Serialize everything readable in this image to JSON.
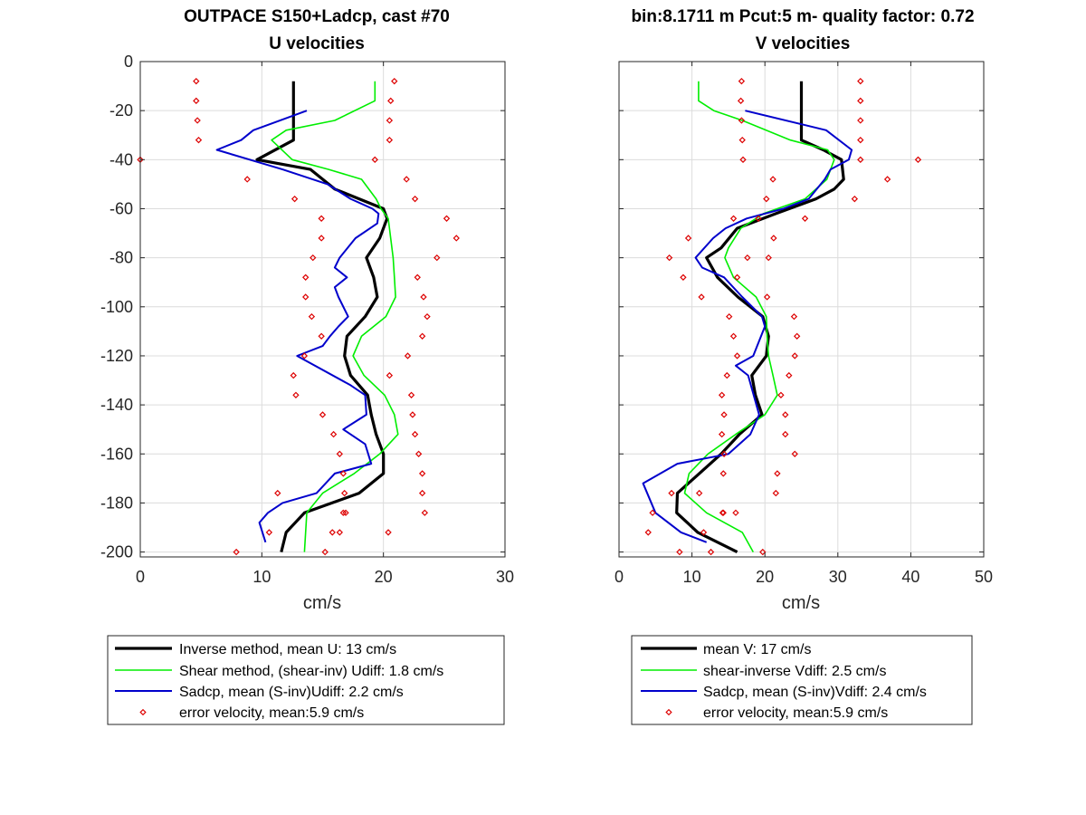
{
  "chart_data": [
    {
      "type": "line",
      "title": [
        "OUTPACE S150+Ladcp, cast #70",
        "U velocities"
      ],
      "xlabel": "cm/s",
      "ylabel": "",
      "xlim": [
        0,
        30
      ],
      "ylim": [
        -202,
        0
      ],
      "xticks": [
        0,
        10,
        20,
        30
      ],
      "yticks": [
        0,
        -20,
        -40,
        -60,
        -80,
        -100,
        -120,
        -140,
        -160,
        -180,
        -200
      ],
      "grid": true,
      "legend_position": "below",
      "series": [
        {
          "name": "Inverse method, mean U:  13 cm/s",
          "style": "line",
          "color": "#000000",
          "width": 3.2,
          "x": [
            12.6,
            12.6,
            12.6,
            12.6,
            9.6,
            14.0,
            16.0,
            18.0,
            20.0,
            20.3,
            19.7,
            18.6,
            19.2,
            19.5,
            18.5,
            17.0,
            16.8,
            17.3,
            18.7,
            19.0,
            19.4,
            20.0,
            20.0,
            18.0,
            13.5,
            12.0,
            11.6
          ],
          "y": [
            -8,
            -16,
            -24,
            -32,
            -40,
            -44,
            -52,
            -56,
            -60,
            -64,
            -72,
            -80,
            -88,
            -96,
            -104,
            -112,
            -120,
            -128,
            -136,
            -144,
            -152,
            -160,
            -168,
            -176,
            -184,
            -192,
            -200
          ]
        },
        {
          "name": "Shear method, (shear-inv)  Udiff:  1.8 cm/s",
          "style": "line",
          "color": "#00ee00",
          "width": 1.6,
          "x": [
            19.3,
            19.3,
            16.0,
            12.0,
            10.8,
            12.5,
            15.5,
            18.2,
            19.4,
            19.8,
            20.4,
            20.6,
            20.8,
            20.9,
            21.0,
            20.2,
            18.2,
            17.5,
            18.4,
            20.1,
            20.9,
            21.2,
            19.7,
            17.6,
            15.0,
            13.7,
            13.5
          ],
          "y": [
            -8,
            -16,
            -24,
            -28,
            -32,
            -40,
            -44,
            -48,
            -56,
            -60,
            -64,
            -72,
            -80,
            -88,
            -96,
            -104,
            -112,
            -120,
            -128,
            -136,
            -144,
            -152,
            -160,
            -168,
            -176,
            -184,
            -200
          ]
        },
        {
          "name": "Sadcp, mean (S-inv)Udiff: 2.2 cm/s",
          "style": "line",
          "color": "#0000cc",
          "width": 2.0,
          "x": [
            13.7,
            9.3,
            8.3,
            6.3,
            11.7,
            15.4,
            17.3,
            19.1,
            19.6,
            19.5,
            17.7,
            16.4,
            16.0,
            17.0,
            16.0,
            16.3,
            17.1,
            16.3,
            15.6,
            15.0,
            12.9,
            17.3,
            18.5,
            18.6,
            16.7,
            18.5,
            19.0,
            16.0,
            14.5,
            11.7,
            10.5,
            9.8,
            10.3
          ],
          "y": [
            -20,
            -28,
            -32,
            -36,
            -44,
            -50,
            -56,
            -60,
            -62,
            -66,
            -72,
            -80,
            -84,
            -88,
            -92,
            -96,
            -104,
            -108,
            -112,
            -116,
            -120,
            -132,
            -136,
            -144,
            -150,
            -156,
            -164,
            -168,
            -176,
            -180,
            -184,
            -188,
            -196
          ]
        },
        {
          "name": "error velocity, mean:5.9 cm/s",
          "style": "markers",
          "color": "#dd0000",
          "x": [
            0.0,
            4.6,
            20.9,
            4.6,
            20.6,
            4.7,
            20.5,
            4.8,
            20.5,
            19.3,
            8.8,
            21.9,
            12.7,
            22.6,
            14.9,
            25.2,
            14.9,
            26.0,
            14.2,
            24.4,
            13.6,
            22.8,
            13.6,
            23.3,
            14.1,
            23.6,
            14.9,
            23.2,
            13.5,
            22.0,
            12.6,
            20.5,
            12.8,
            22.3,
            15.0,
            22.4,
            15.9,
            22.6,
            16.4,
            22.9,
            16.7,
            23.2,
            16.8,
            23.2,
            16.9,
            23.4,
            16.4,
            20.4,
            11.3,
            16.7,
            10.6,
            15.8,
            7.9,
            15.2
          ],
          "y": [
            -40,
            -8,
            -8,
            -16,
            -16,
            -24,
            -24,
            -32,
            -32,
            -40,
            -48,
            -48,
            -56,
            -56,
            -64,
            -64,
            -72,
            -72,
            -80,
            -80,
            -88,
            -88,
            -96,
            -96,
            -104,
            -104,
            -112,
            -112,
            -120,
            -120,
            -128,
            -128,
            -136,
            -136,
            -144,
            -144,
            -152,
            -152,
            -160,
            -160,
            -168,
            -168,
            -176,
            -176,
            -184,
            -184,
            -192,
            -192,
            -176,
            -184,
            -192,
            -192,
            -200,
            -200
          ]
        }
      ]
    },
    {
      "type": "line",
      "title": [
        "bin:8.1711 m  Pcut:5 m- quality factor:  0.72",
        "V velocities"
      ],
      "xlabel": "cm/s",
      "ylabel": "",
      "xlim": [
        0,
        50
      ],
      "ylim": [
        -202,
        0
      ],
      "xticks": [
        0,
        10,
        20,
        30,
        40,
        50
      ],
      "yticks": [
        0,
        -20,
        -40,
        -60,
        -80,
        -100,
        -120,
        -140,
        -160,
        -180,
        -200
      ],
      "grid": true,
      "legend_position": "below",
      "series": [
        {
          "name": "mean V:  17 cm/s",
          "style": "line",
          "color": "#000000",
          "width": 3.2,
          "x": [
            25.0,
            25.0,
            25.0,
            25.0,
            28.0,
            30.5,
            30.8,
            29.5,
            27.0,
            21.5,
            16.2,
            14.0,
            12.0,
            13.5,
            16.3,
            19.7,
            20.5,
            20.2,
            18.2,
            18.7,
            19.6,
            16.5,
            14.0,
            11.0,
            8.0,
            7.9,
            10.8,
            16.2
          ],
          "y": [
            -8,
            -16,
            -24,
            -32,
            -36,
            -40,
            -48,
            -52,
            -56,
            -62,
            -68,
            -76,
            -80,
            -88,
            -96,
            -104,
            -112,
            -120,
            -128,
            -136,
            -144,
            -152,
            -160,
            -168,
            -176,
            -184,
            -192,
            -200
          ]
        },
        {
          "name": "shear-inverse Vdiff:  2.5 cm/s",
          "style": "line",
          "color": "#00ee00",
          "width": 1.6,
          "x": [
            10.9,
            10.9,
            13.0,
            16.9,
            23.5,
            28.6,
            29.5,
            28.5,
            25.5,
            19.8,
            16.7,
            15.0,
            14.5,
            15.7,
            18.8,
            20.2,
            20.3,
            20.5,
            21.1,
            21.7,
            20.0,
            16.0,
            12.2,
            9.6,
            9.0,
            12.0,
            16.9,
            18.4
          ],
          "y": [
            -8,
            -16,
            -20,
            -24,
            -32,
            -36,
            -40,
            -48,
            -56,
            -62,
            -68,
            -76,
            -80,
            -88,
            -96,
            -104,
            -112,
            -120,
            -128,
            -136,
            -144,
            -152,
            -160,
            -168,
            -176,
            -184,
            -192,
            -200
          ]
        },
        {
          "name": "Sadcp, mean (S-inv)Vdiff: 2.4 cm/s",
          "style": "line",
          "color": "#0000cc",
          "width": 2.0,
          "x": [
            17.3,
            28.4,
            31.9,
            31.5,
            29.0,
            28.2,
            26.0,
            22.5,
            17.5,
            14.6,
            12.9,
            10.5,
            11.4,
            14.4,
            16.9,
            19.6,
            20.0,
            18.4,
            16.0,
            17.7,
            19.2,
            18.0,
            15.0,
            8.0,
            3.3,
            5.0,
            8.5,
            12.0
          ],
          "y": [
            -20,
            -28,
            -36,
            -40,
            -44,
            -48,
            -56,
            -60,
            -64,
            -68,
            -72,
            -80,
            -84,
            -88,
            -96,
            -104,
            -108,
            -120,
            -124,
            -128,
            -144,
            -152,
            -160,
            -164,
            -172,
            -184,
            -192,
            -196
          ]
        },
        {
          "name": "error velocity, mean:5.9 cm/s",
          "style": "markers",
          "color": "#dd0000",
          "x": [
            16.8,
            33.1,
            16.7,
            33.1,
            16.8,
            33.1,
            16.9,
            33.1,
            17.0,
            33.1,
            41.0,
            21.1,
            36.8,
            20.2,
            32.3,
            19.1,
            25.5,
            15.7,
            21.2,
            9.5,
            20.5,
            6.9,
            17.6,
            8.8,
            16.2,
            11.3,
            20.3,
            15.1,
            24.0,
            15.7,
            24.4,
            16.2,
            24.1,
            14.8,
            23.3,
            14.1,
            22.2,
            14.4,
            22.8,
            14.1,
            22.8,
            14.4,
            24.1,
            14.3,
            21.7,
            11.0,
            21.5,
            14.3,
            7.2,
            14.2,
            4.6,
            16.0,
            4.0,
            11.6,
            8.3,
            12.6,
            19.7
          ],
          "y": [
            -8,
            -8,
            -16,
            -16,
            -24,
            -24,
            -32,
            -32,
            -40,
            -40,
            -40,
            -48,
            -48,
            -56,
            -56,
            -64,
            -64,
            -64,
            -72,
            -72,
            -80,
            -80,
            -80,
            -88,
            -88,
            -96,
            -96,
            -104,
            -104,
            -112,
            -112,
            -120,
            -120,
            -128,
            -128,
            -136,
            -136,
            -144,
            -144,
            -152,
            -152,
            -160,
            -160,
            -168,
            -168,
            -176,
            -176,
            -184,
            -176,
            -184,
            -184,
            -184,
            -192,
            -192,
            -200,
            -200,
            -200
          ]
        }
      ]
    }
  ]
}
